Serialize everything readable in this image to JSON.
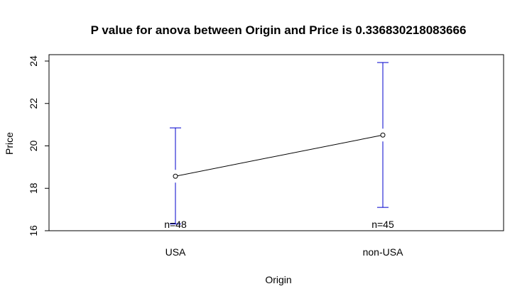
{
  "chart_data": {
    "type": "line",
    "title": "P value for anova between Origin  and  Price  is  0.336830218083666",
    "xlabel": "Origin",
    "ylabel": "Price",
    "categories": [
      "USA",
      "non-USA"
    ],
    "ylim": [
      16,
      24
    ],
    "yticks": [
      16,
      18,
      20,
      22,
      24
    ],
    "series": [
      {
        "values": [
          18.57,
          20.51
        ],
        "lower": [
          16.32,
          17.1
        ],
        "upper": [
          20.85,
          23.93
        ],
        "counts": [
          "n=48",
          "n=45"
        ]
      }
    ],
    "colors": {
      "line": "#000000",
      "error_bar": "#0000cd",
      "frame": "#000000"
    },
    "grid": false,
    "legend": "none"
  }
}
